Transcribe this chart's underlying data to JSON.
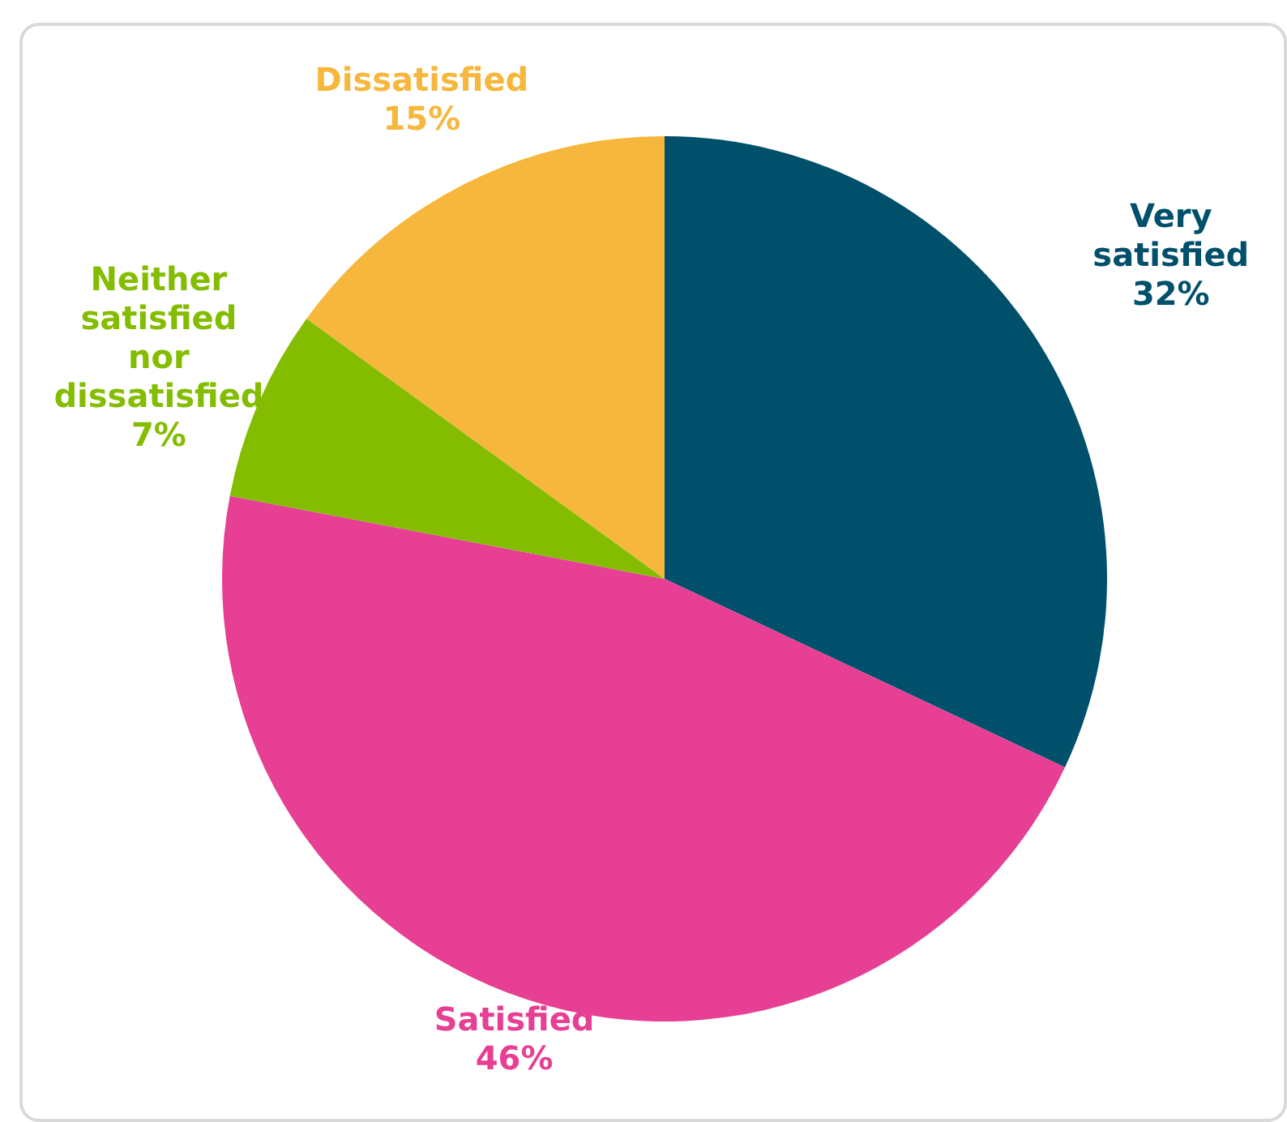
{
  "chart_data": {
    "type": "pie",
    "categories": [
      "Very satisfied",
      "Satisfied",
      "Neither satisfied nor dissatisfied",
      "Dissatisfied"
    ],
    "values": [
      32,
      46,
      7,
      15
    ],
    "colors": [
      "#004f6b",
      "#e63f94",
      "#84bd00",
      "#f6b73c"
    ],
    "value_labels": [
      "32%",
      "46%",
      "7%",
      "15%"
    ]
  }
}
